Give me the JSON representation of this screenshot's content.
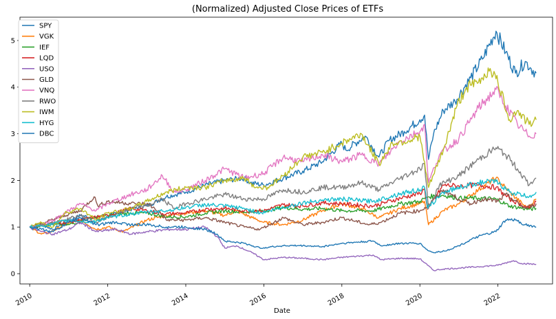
{
  "chart_data": {
    "type": "line",
    "title": "(Normalized) Adjusted Close Prices of ETFs",
    "xlabel": "Date",
    "ylabel": "",
    "xlim": [
      2009.75,
      2023.4
    ],
    "ylim": [
      -0.22,
      5.5
    ],
    "xticks": [
      2010,
      2012,
      2014,
      2016,
      2018,
      2020,
      2022
    ],
    "yticks": [
      0,
      1,
      2,
      3,
      4,
      5
    ],
    "grid": false,
    "legend": "top-left",
    "series": [
      {
        "name": "SPY",
        "color": "#1f77b4",
        "x": [
          2010.0,
          2010.1,
          2010.3,
          2010.45,
          2010.6,
          2010.9,
          2011.3,
          2011.6,
          2011.8,
          2012.2,
          2012.7,
          2013.0,
          2013.5,
          2014.0,
          2014.5,
          2015.0,
          2015.5,
          2015.65,
          2016.0,
          2016.5,
          2017.0,
          2017.5,
          2018.0,
          2018.1,
          2018.6,
          2018.95,
          2019.2,
          2019.6,
          2020.0,
          2020.12,
          2020.22,
          2020.35,
          2020.6,
          2020.9,
          2021.3,
          2021.6,
          2021.95,
          2022.2,
          2022.45,
          2022.7,
          2022.85,
          2022.98
        ],
        "y": [
          1.0,
          0.95,
          1.05,
          1.0,
          0.95,
          1.1,
          1.25,
          1.2,
          1.15,
          1.3,
          1.4,
          1.45,
          1.65,
          1.75,
          1.9,
          2.0,
          2.05,
          1.95,
          1.9,
          2.05,
          2.2,
          2.4,
          2.8,
          2.65,
          2.95,
          2.5,
          2.85,
          3.05,
          3.3,
          3.4,
          2.45,
          3.0,
          3.5,
          3.7,
          4.2,
          4.6,
          5.2,
          4.75,
          4.3,
          4.55,
          4.4,
          4.3
        ]
      },
      {
        "name": "VGK",
        "color": "#ff7f0e",
        "x": [
          2010.0,
          2010.3,
          2010.5,
          2010.9,
          2011.3,
          2011.7,
          2012.0,
          2012.4,
          2013.0,
          2013.5,
          2014.0,
          2014.5,
          2015.0,
          2015.3,
          2015.7,
          2016.0,
          2016.5,
          2017.0,
          2017.5,
          2018.0,
          2018.5,
          2018.95,
          2019.5,
          2020.0,
          2020.12,
          2020.22,
          2020.6,
          2021.0,
          2021.5,
          2021.95,
          2022.3,
          2022.75,
          2022.98
        ],
        "y": [
          1.0,
          0.85,
          0.88,
          1.05,
          1.15,
          0.95,
          1.0,
          0.9,
          1.15,
          1.25,
          1.3,
          1.35,
          1.25,
          1.35,
          1.2,
          1.1,
          1.05,
          1.15,
          1.35,
          1.5,
          1.4,
          1.2,
          1.4,
          1.5,
          1.55,
          1.05,
          1.35,
          1.5,
          1.8,
          2.05,
          1.75,
          1.4,
          1.6
        ]
      },
      {
        "name": "IEF",
        "color": "#2ca02c",
        "x": [
          2010.0,
          2010.5,
          2011.0,
          2011.6,
          2012.0,
          2012.6,
          2013.0,
          2013.5,
          2014.0,
          2014.5,
          2015.0,
          2015.5,
          2016.0,
          2016.5,
          2017.0,
          2017.5,
          2018.0,
          2018.8,
          2019.5,
          2020.0,
          2020.2,
          2020.6,
          2021.0,
          2021.5,
          2021.95,
          2022.3,
          2022.8,
          2022.98
        ],
        "y": [
          1.0,
          1.05,
          1.05,
          1.2,
          1.25,
          1.3,
          1.3,
          1.22,
          1.22,
          1.3,
          1.35,
          1.32,
          1.35,
          1.42,
          1.38,
          1.4,
          1.35,
          1.35,
          1.5,
          1.55,
          1.65,
          1.68,
          1.62,
          1.62,
          1.6,
          1.45,
          1.38,
          1.4
        ]
      },
      {
        "name": "LQD",
        "color": "#d62728",
        "x": [
          2010.0,
          2010.5,
          2011.0,
          2011.6,
          2012.0,
          2012.6,
          2013.0,
          2013.5,
          2014.0,
          2014.5,
          2015.0,
          2015.5,
          2016.0,
          2016.5,
          2017.0,
          2017.5,
          2018.0,
          2018.8,
          2019.5,
          2020.0,
          2020.12,
          2020.2,
          2020.6,
          2021.0,
          2021.5,
          2021.95,
          2022.3,
          2022.8,
          2022.98
        ],
        "y": [
          1.0,
          1.08,
          1.1,
          1.2,
          1.25,
          1.4,
          1.35,
          1.28,
          1.3,
          1.38,
          1.4,
          1.35,
          1.35,
          1.48,
          1.45,
          1.52,
          1.5,
          1.45,
          1.62,
          1.72,
          1.82,
          1.38,
          1.9,
          1.88,
          1.9,
          1.85,
          1.6,
          1.4,
          1.55
        ]
      },
      {
        "name": "USO",
        "color": "#9467bd",
        "x": [
          2010.0,
          2010.3,
          2010.6,
          2011.0,
          2011.3,
          2011.7,
          2012.2,
          2012.6,
          2013.0,
          2013.6,
          2014.0,
          2014.5,
          2014.8,
          2015.0,
          2015.3,
          2015.7,
          2016.0,
          2016.5,
          2017.0,
          2017.5,
          2018.0,
          2018.8,
          2019.0,
          2019.5,
          2020.0,
          2020.2,
          2020.35,
          2020.6,
          2021.0,
          2021.5,
          2022.0,
          2022.4,
          2022.6,
          2022.98
        ],
        "y": [
          1.0,
          0.9,
          0.85,
          0.95,
          1.1,
          0.9,
          0.95,
          0.85,
          0.9,
          0.95,
          0.95,
          1.0,
          0.8,
          0.55,
          0.6,
          0.45,
          0.3,
          0.35,
          0.33,
          0.3,
          0.35,
          0.4,
          0.3,
          0.33,
          0.32,
          0.18,
          0.07,
          0.1,
          0.12,
          0.15,
          0.18,
          0.28,
          0.22,
          0.2
        ]
      },
      {
        "name": "GLD",
        "color": "#8c564b",
        "x": [
          2010.0,
          2010.4,
          2010.9,
          2011.3,
          2011.65,
          2011.75,
          2012.0,
          2012.7,
          2013.0,
          2013.3,
          2013.5,
          2014.0,
          2014.5,
          2015.0,
          2015.5,
          2015.9,
          2016.5,
          2017.0,
          2017.5,
          2018.0,
          2018.7,
          2019.0,
          2019.5,
          2020.0,
          2020.2,
          2020.6,
          2021.0,
          2021.3,
          2021.6,
          2022.0,
          2022.2,
          2022.7,
          2022.98
        ],
        "y": [
          1.0,
          1.1,
          1.25,
          1.35,
          1.65,
          1.45,
          1.55,
          1.5,
          1.5,
          1.35,
          1.15,
          1.15,
          1.2,
          1.1,
          1.0,
          0.95,
          1.2,
          1.05,
          1.1,
          1.2,
          1.05,
          1.1,
          1.3,
          1.35,
          1.45,
          1.8,
          1.6,
          1.5,
          1.6,
          1.55,
          1.7,
          1.4,
          1.5
        ]
      },
      {
        "name": "VNQ",
        "color": "#e377c2",
        "x": [
          2010.0,
          2010.3,
          2010.6,
          2010.9,
          2011.3,
          2011.7,
          2012.0,
          2012.6,
          2013.0,
          2013.4,
          2013.7,
          2014.0,
          2014.5,
          2015.0,
          2015.5,
          2016.0,
          2016.5,
          2017.0,
          2017.5,
          2018.0,
          2018.5,
          2018.95,
          2019.5,
          2020.0,
          2020.12,
          2020.22,
          2020.5,
          2021.0,
          2021.5,
          2021.95,
          2022.2,
          2022.5,
          2022.8,
          2022.98
        ],
        "y": [
          1.0,
          1.05,
          1.15,
          1.3,
          1.5,
          1.35,
          1.5,
          1.7,
          1.8,
          2.1,
          1.75,
          1.8,
          2.0,
          2.25,
          2.05,
          2.15,
          2.5,
          2.4,
          2.55,
          2.4,
          2.55,
          2.35,
          2.85,
          3.05,
          3.2,
          1.95,
          2.55,
          2.9,
          3.55,
          3.95,
          3.6,
          3.2,
          2.95,
          3.0
        ]
      },
      {
        "name": "RWO",
        "color": "#7f7f7f",
        "x": [
          2010.0,
          2010.4,
          2010.9,
          2011.3,
          2011.7,
          2012.0,
          2012.6,
          2013.0,
          2013.4,
          2013.7,
          2014.0,
          2014.5,
          2015.0,
          2015.5,
          2016.0,
          2016.5,
          2017.0,
          2017.5,
          2018.0,
          2018.5,
          2018.95,
          2019.5,
          2020.0,
          2020.12,
          2020.22,
          2020.5,
          2021.0,
          2021.5,
          2021.95,
          2022.2,
          2022.5,
          2022.8,
          2022.98
        ],
        "y": [
          1.0,
          1.05,
          1.15,
          1.25,
          1.1,
          1.2,
          1.4,
          1.45,
          1.6,
          1.4,
          1.5,
          1.6,
          1.7,
          1.6,
          1.6,
          1.8,
          1.75,
          1.85,
          1.85,
          1.95,
          1.8,
          2.05,
          2.25,
          2.35,
          1.4,
          1.9,
          2.1,
          2.45,
          2.7,
          2.55,
          2.25,
          1.9,
          2.05
        ]
      },
      {
        "name": "IWM",
        "color": "#bcbd22",
        "x": [
          2010.0,
          2010.3,
          2010.6,
          2010.9,
          2011.3,
          2011.7,
          2012.0,
          2012.6,
          2013.0,
          2013.5,
          2014.0,
          2014.5,
          2015.0,
          2015.5,
          2015.8,
          2016.1,
          2016.5,
          2017.0,
          2017.5,
          2018.0,
          2018.5,
          2018.95,
          2019.3,
          2019.7,
          2020.0,
          2020.22,
          2020.6,
          2020.95,
          2021.2,
          2021.5,
          2021.8,
          2022.0,
          2022.3,
          2022.5,
          2022.8,
          2022.98
        ],
        "y": [
          1.0,
          1.1,
          1.0,
          1.3,
          1.4,
          1.15,
          1.3,
          1.4,
          1.55,
          1.75,
          1.85,
          1.85,
          2.0,
          2.05,
          1.85,
          1.85,
          2.1,
          2.5,
          2.6,
          2.8,
          3.0,
          2.35,
          2.8,
          2.85,
          2.95,
          1.85,
          2.65,
          3.6,
          4.0,
          4.1,
          4.4,
          4.1,
          3.3,
          3.5,
          3.2,
          3.3
        ]
      },
      {
        "name": "HYG",
        "color": "#17becf",
        "x": [
          2010.0,
          2010.5,
          2011.0,
          2011.6,
          2012.0,
          2012.6,
          2013.0,
          2013.5,
          2014.0,
          2014.5,
          2015.0,
          2015.5,
          2015.9,
          2016.5,
          2017.0,
          2017.5,
          2018.0,
          2018.8,
          2019.5,
          2020.0,
          2020.12,
          2020.2,
          2020.6,
          2021.0,
          2021.5,
          2021.95,
          2022.3,
          2022.8,
          2022.98
        ],
        "y": [
          1.0,
          1.05,
          1.15,
          1.1,
          1.2,
          1.28,
          1.32,
          1.35,
          1.42,
          1.48,
          1.45,
          1.4,
          1.3,
          1.42,
          1.52,
          1.58,
          1.6,
          1.55,
          1.72,
          1.8,
          1.85,
          1.4,
          1.75,
          1.85,
          1.95,
          1.98,
          1.75,
          1.65,
          1.75
        ]
      },
      {
        "name": "DBC",
        "color": "#1f77b4",
        "x": [
          2010.0,
          2010.3,
          2010.6,
          2011.0,
          2011.3,
          2011.7,
          2012.2,
          2012.6,
          2013.0,
          2013.5,
          2014.0,
          2014.5,
          2014.8,
          2015.0,
          2015.5,
          2015.9,
          2016.5,
          2017.0,
          2017.5,
          2018.0,
          2018.8,
          2019.0,
          2019.5,
          2020.0,
          2020.2,
          2020.35,
          2020.7,
          2021.0,
          2021.5,
          2021.95,
          2022.2,
          2022.45,
          2022.7,
          2022.98
        ],
        "y": [
          1.0,
          0.95,
          0.9,
          1.1,
          1.2,
          1.05,
          1.1,
          1.05,
          1.05,
          1.0,
          1.0,
          0.95,
          0.85,
          0.7,
          0.65,
          0.55,
          0.6,
          0.6,
          0.58,
          0.65,
          0.7,
          0.6,
          0.65,
          0.65,
          0.5,
          0.45,
          0.5,
          0.6,
          0.8,
          0.9,
          1.15,
          1.15,
          1.05,
          1.0
        ]
      }
    ]
  }
}
